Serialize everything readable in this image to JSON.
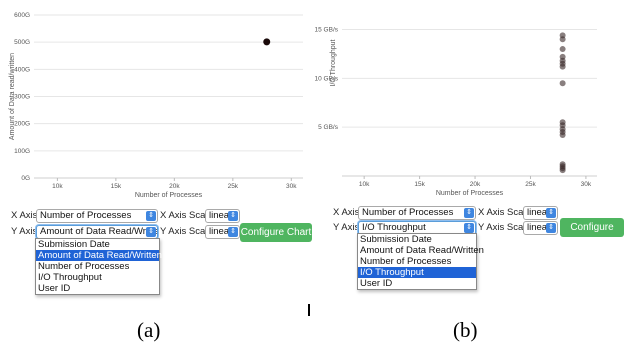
{
  "panel_a": {
    "caption": "(a)",
    "chart_data": {
      "type": "scatter",
      "xlabel": "Number of Processes",
      "ylabel": "Amount of Data read/written",
      "xlim": [
        8000,
        31000
      ],
      "ylim": [
        0,
        600
      ],
      "xticks": [
        10000,
        15000,
        20000,
        25000,
        30000
      ],
      "xtick_labels": [
        "10k",
        "15k",
        "20k",
        "25k",
        "30k"
      ],
      "yticks": [
        0,
        100,
        200,
        300,
        400,
        500,
        600
      ],
      "ytick_labels": [
        "0G",
        "100G",
        "200G",
        "300G",
        "400G",
        "500G",
        "600G"
      ],
      "grid": true,
      "points": [
        {
          "x": 27900,
          "y": 501
        }
      ]
    },
    "controls": {
      "x_axis_label": "X Axis",
      "x_axis_value": "Number of Processes",
      "x_scale_label": "X Axis Scale",
      "x_scale_value": "linear",
      "y_axis_label": "Y Axis",
      "y_axis_value": "Amount of Data Read/Written",
      "y_scale_label": "Y Axis Scale",
      "y_scale_value": "linear",
      "configure_label": "Configure Chart"
    },
    "dropdown": {
      "options": [
        "Submission Date",
        "Amount of Data Read/Written",
        "Number of Processes",
        "I/O Throughput",
        "User ID"
      ],
      "selected": "Amount of Data Read/Written"
    }
  },
  "panel_b": {
    "caption": "(b)",
    "chart_data": {
      "type": "scatter",
      "xlabel": "Number of Processes",
      "ylabel": "I/O Throughput",
      "xlim": [
        8000,
        31000
      ],
      "ylim": [
        0,
        17
      ],
      "xticks": [
        10000,
        15000,
        20000,
        25000,
        30000
      ],
      "xtick_labels": [
        "10k",
        "15k",
        "20k",
        "25k",
        "30k"
      ],
      "yticks": [
        5,
        10,
        15
      ],
      "ytick_labels": [
        "5 GB/s",
        "10 GB/s",
        "15 GB/s"
      ],
      "grid": true,
      "points": [
        {
          "x": 27900,
          "y": 14.4
        },
        {
          "x": 27900,
          "y": 14.0
        },
        {
          "x": 27900,
          "y": 13.0
        },
        {
          "x": 27900,
          "y": 12.2
        },
        {
          "x": 27900,
          "y": 11.8
        },
        {
          "x": 27900,
          "y": 11.5
        },
        {
          "x": 27900,
          "y": 11.2
        },
        {
          "x": 27900,
          "y": 9.5
        },
        {
          "x": 27900,
          "y": 5.5
        },
        {
          "x": 27900,
          "y": 5.2
        },
        {
          "x": 27900,
          "y": 4.8
        },
        {
          "x": 27900,
          "y": 4.5
        },
        {
          "x": 27900,
          "y": 4.2
        },
        {
          "x": 27900,
          "y": 1.2
        },
        {
          "x": 27900,
          "y": 1.0
        },
        {
          "x": 27900,
          "y": 0.8
        },
        {
          "x": 27900,
          "y": 0.6
        }
      ]
    },
    "controls": {
      "x_axis_label": "X Axis",
      "x_axis_value": "Number of Processes",
      "x_scale_label": "X Axis Scale",
      "x_scale_value": "linear",
      "y_axis_label": "Y Axis",
      "y_axis_value": "I/O Throughput",
      "y_scale_label": "Y Axis Scale",
      "y_scale_value": "linear",
      "configure_label": "Configure Chart"
    },
    "dropdown": {
      "options": [
        "Submission Date",
        "Amount of Data Read/Written",
        "Number of Processes",
        "I/O Throughput",
        "User ID"
      ],
      "selected": "I/O Throughput"
    }
  }
}
